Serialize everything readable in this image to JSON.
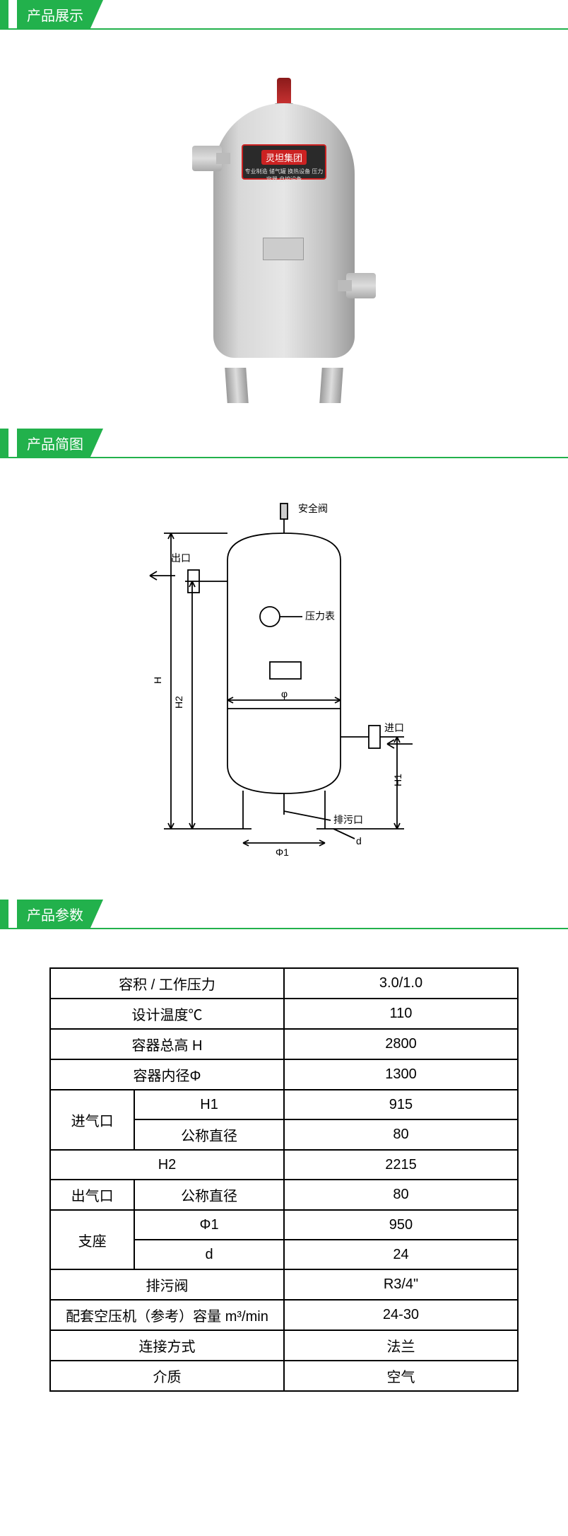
{
  "sections": {
    "display": "产品展示",
    "schematic": "产品简图",
    "params": "产品参数"
  },
  "nameplate": {
    "brand": "灵坦集团",
    "sub": "专业制造 储气罐 换热设备 压力容器 自控设备"
  },
  "diagram": {
    "labels": {
      "safety_valve": "安全阀",
      "outlet": "出口",
      "pressure_gauge": "压力表",
      "inlet": "进口",
      "drain": "排污口",
      "H": "H",
      "H1": "H1",
      "H2": "H2",
      "phi": "φ",
      "phi1": "Φ1",
      "d": "d"
    },
    "colors": {
      "stroke": "#000000",
      "fill": "#ffffff",
      "text": "#000000"
    }
  },
  "params_table": {
    "rows": [
      {
        "label_span": 2,
        "label": "容积 / 工作压力",
        "value": "3.0/1.0"
      },
      {
        "label_span": 2,
        "label": "设计温度℃",
        "value": "110"
      },
      {
        "label_span": 2,
        "label": "容器总高 H",
        "value": "2800"
      },
      {
        "label_span": 2,
        "label": "容器内径Φ",
        "value": "1300"
      },
      {
        "group": "进气口",
        "group_rows": 2,
        "sub": "H1",
        "value": "915"
      },
      {
        "group_cont": true,
        "sub": "公称直径",
        "value": "80"
      },
      {
        "label_span": 2,
        "label": "H2",
        "value": "2215"
      },
      {
        "group": "出气口",
        "group_rows": 1,
        "sub": "公称直径",
        "value": "80"
      },
      {
        "group": "支座",
        "group_rows": 2,
        "sub": "Φ1",
        "value": "950"
      },
      {
        "group_cont": true,
        "sub": "d",
        "value": "24"
      },
      {
        "label_span": 2,
        "label": "排污阀",
        "value": "R3/4\""
      },
      {
        "label_span": 2,
        "label": "配套空压机（参考）容量 m³/min",
        "value": "24-30"
      },
      {
        "label_span": 2,
        "label": "连接方式",
        "value": "法兰"
      },
      {
        "label_span": 2,
        "label": "介质",
        "value": "空气"
      }
    ]
  }
}
